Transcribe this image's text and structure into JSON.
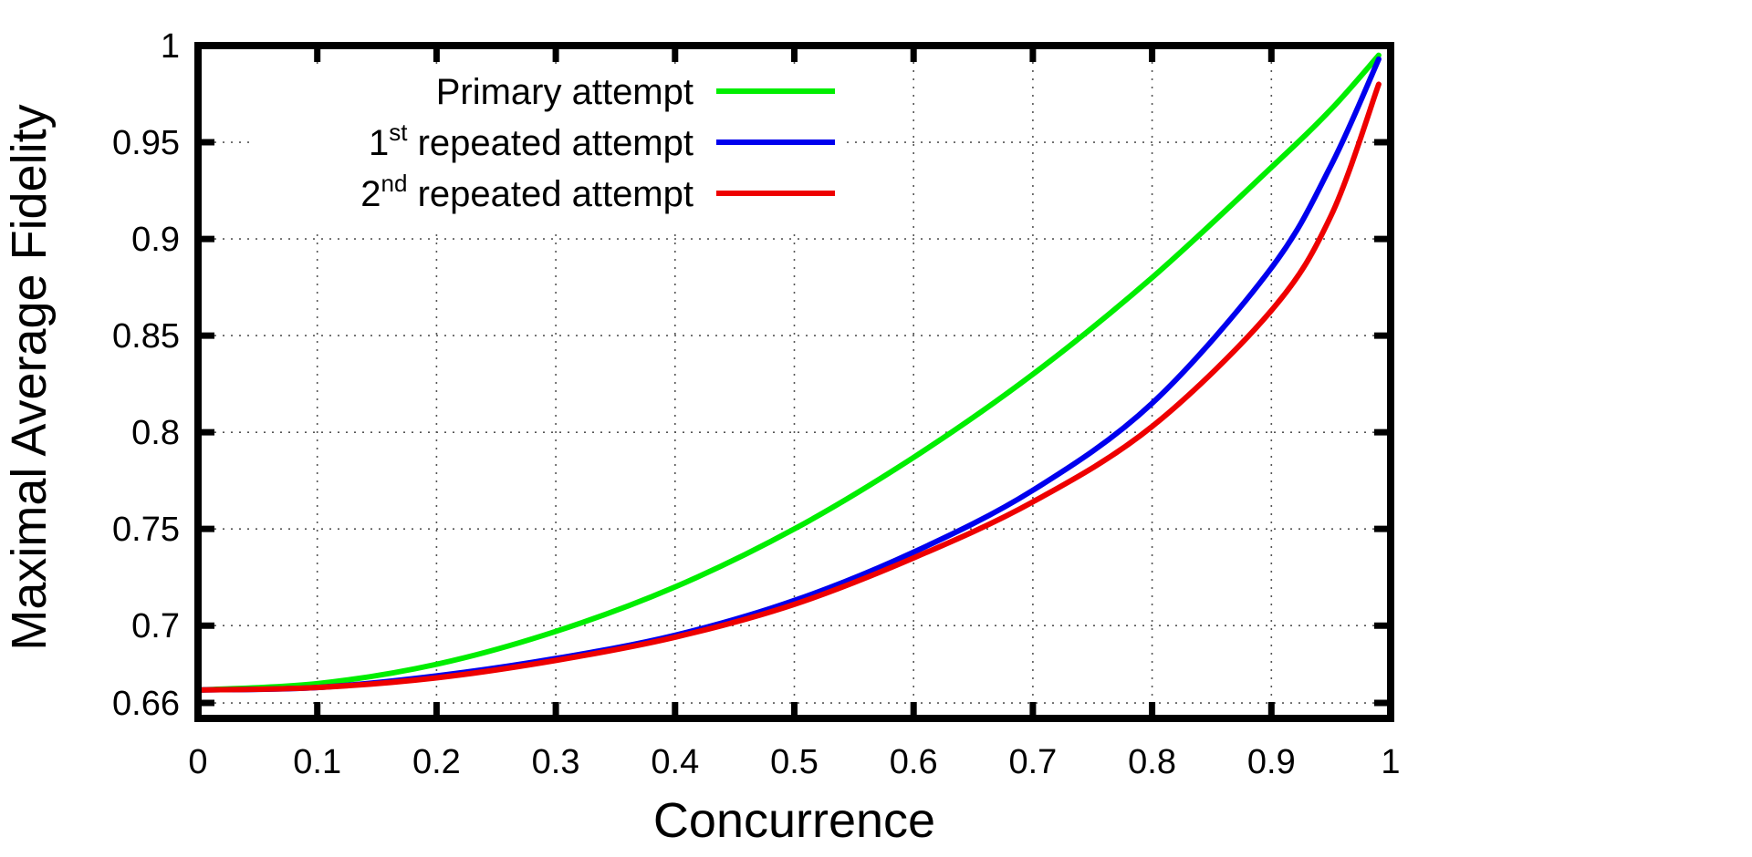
{
  "chart_data": {
    "type": "line",
    "title": "",
    "xlabel": "Concurrence",
    "ylabel": "Maximal Average Fidelity",
    "xlim": [
      0,
      1
    ],
    "ylim": [
      0.652,
      1
    ],
    "xticks": [
      {
        "value": 0,
        "label": "0"
      },
      {
        "value": 0.1,
        "label": "0.1"
      },
      {
        "value": 0.2,
        "label": "0.2"
      },
      {
        "value": 0.3,
        "label": "0.3"
      },
      {
        "value": 0.4,
        "label": "0.4"
      },
      {
        "value": 0.5,
        "label": "0.5"
      },
      {
        "value": 0.6,
        "label": "0.6"
      },
      {
        "value": 0.7,
        "label": "0.7"
      },
      {
        "value": 0.8,
        "label": "0.8"
      },
      {
        "value": 0.9,
        "label": "0.9"
      },
      {
        "value": 1,
        "label": "1"
      }
    ],
    "yticks": [
      {
        "value": 0.66,
        "label": "0.66"
      },
      {
        "value": 0.7,
        "label": "0.7"
      },
      {
        "value": 0.75,
        "label": "0.75"
      },
      {
        "value": 0.8,
        "label": "0.8"
      },
      {
        "value": 0.85,
        "label": "0.85"
      },
      {
        "value": 0.9,
        "label": "0.9"
      },
      {
        "value": 0.95,
        "label": "0.95"
      },
      {
        "value": 1,
        "label": "1"
      }
    ],
    "grid": true,
    "legend_position": "top-left",
    "x": [
      0,
      0.1,
      0.2,
      0.3,
      0.4,
      0.5,
      0.6,
      0.7,
      0.8,
      0.9,
      0.95,
      0.99
    ],
    "series": [
      {
        "name_main": "Primary attempt",
        "name_sup": "",
        "name_prefix": "",
        "color": "#00ee00",
        "values": [
          0.6667,
          0.67,
          0.68,
          0.697,
          0.72,
          0.75,
          0.787,
          0.83,
          0.88,
          0.937,
          0.967,
          0.995
        ]
      },
      {
        "name_prefix": "1",
        "name_sup": "st",
        "name_main": " repeated attempt",
        "color": "#0000ee",
        "values": [
          0.6667,
          0.668,
          0.674,
          0.683,
          0.695,
          0.713,
          0.738,
          0.77,
          0.815,
          0.885,
          0.938,
          0.993
        ]
      },
      {
        "name_prefix": "2",
        "name_sup": "nd",
        "name_main": " repeated attempt",
        "color": "#ee0000",
        "values": [
          0.6667,
          0.668,
          0.673,
          0.682,
          0.694,
          0.711,
          0.735,
          0.764,
          0.803,
          0.863,
          0.912,
          0.98
        ]
      }
    ]
  }
}
